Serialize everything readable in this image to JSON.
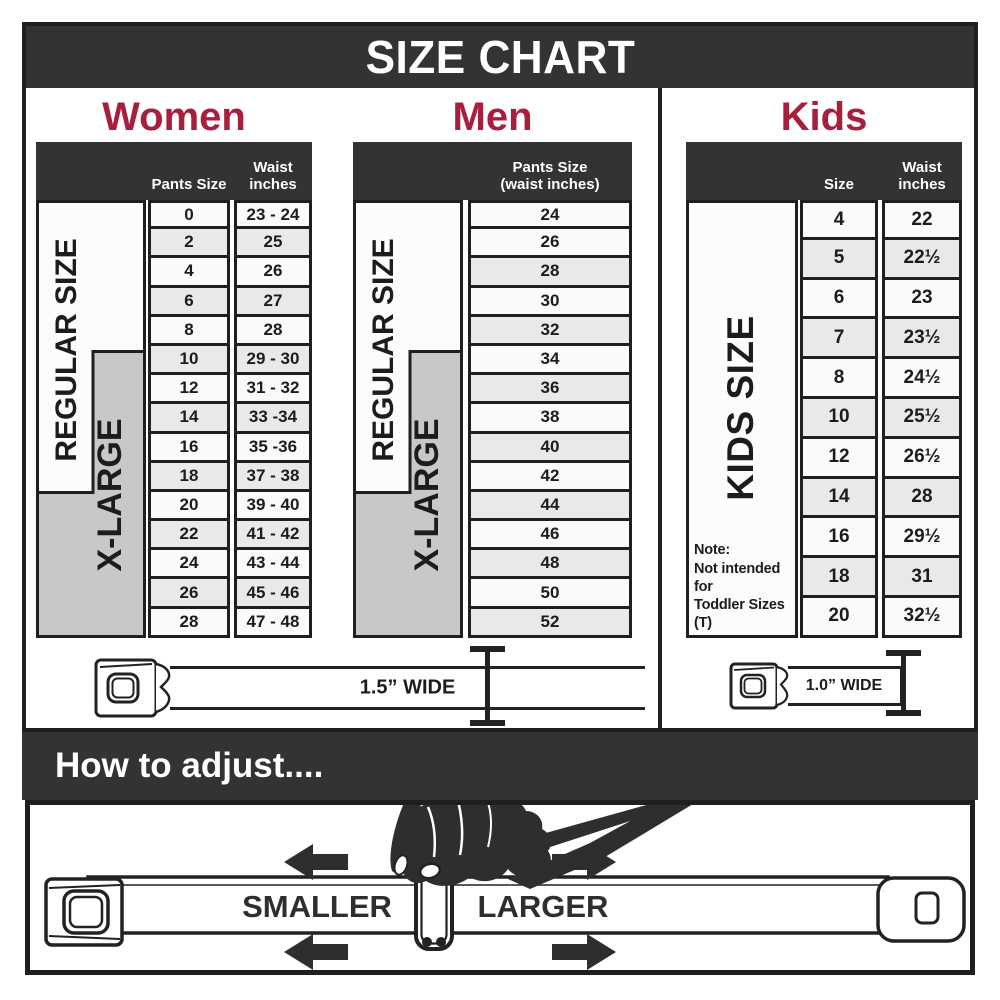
{
  "title": "SIZE CHART",
  "sections": {
    "women": {
      "heading": "Women",
      "regular_label": "REGULAR SIZE",
      "xlarge_label": "X-LARGE",
      "table": {
        "col1_header": "Pants Size",
        "col2_header_lines": [
          "Waist",
          "inches"
        ],
        "rows": [
          [
            "0",
            "23 - 24"
          ],
          [
            "2",
            "25"
          ],
          [
            "4",
            "26"
          ],
          [
            "6",
            "27"
          ],
          [
            "8",
            "28"
          ],
          [
            "10",
            "29 - 30"
          ],
          [
            "12",
            "31 - 32"
          ],
          [
            "14",
            "33 -34"
          ],
          [
            "16",
            "35 -36"
          ],
          [
            "18",
            "37 - 38"
          ],
          [
            "20",
            "39 - 40"
          ],
          [
            "22",
            "41 - 42"
          ],
          [
            "24",
            "43 - 44"
          ],
          [
            "26",
            "45 - 46"
          ],
          [
            "28",
            "47 - 48"
          ]
        ]
      }
    },
    "men": {
      "heading": "Men",
      "regular_label": "REGULAR SIZE",
      "xlarge_label": "X-LARGE",
      "table": {
        "header_lines": [
          "Pants Size",
          "(waist inches)"
        ],
        "rows": [
          "24",
          "26",
          "28",
          "30",
          "32",
          "34",
          "36",
          "38",
          "40",
          "42",
          "44",
          "46",
          "48",
          "50",
          "52"
        ]
      }
    },
    "kids": {
      "heading": "Kids",
      "side_label": "KIDS SIZE",
      "note_lines": [
        "Note:",
        "Not intended for",
        "Toddler Sizes (T)"
      ],
      "table": {
        "col1_header": "Size",
        "col2_header_lines": [
          "Waist",
          "inches"
        ],
        "rows": [
          [
            "4",
            "22"
          ],
          [
            "5",
            "22½"
          ],
          [
            "6",
            "23"
          ],
          [
            "7",
            "23½"
          ],
          [
            "8",
            "24½"
          ],
          [
            "10",
            "25½"
          ],
          [
            "12",
            "26½"
          ],
          [
            "14",
            "28"
          ],
          [
            "16",
            "29½"
          ],
          [
            "18",
            "31"
          ],
          [
            "20",
            "32½"
          ]
        ]
      }
    }
  },
  "belts": {
    "adult_width_label": "1.5” WIDE",
    "kids_width_label": "1.0” WIDE"
  },
  "adjust": {
    "heading": "How to adjust....",
    "smaller_label": "SMALLER",
    "larger_label": "LARGER"
  },
  "colors": {
    "accent_red": "#A81E3C",
    "bar_dark": "#333333",
    "row_light": "#FAFAFA",
    "row_shaded": "#E9E9E9",
    "xlarge_gray": "#C8C8C8",
    "line_black": "#1F1F1F"
  }
}
